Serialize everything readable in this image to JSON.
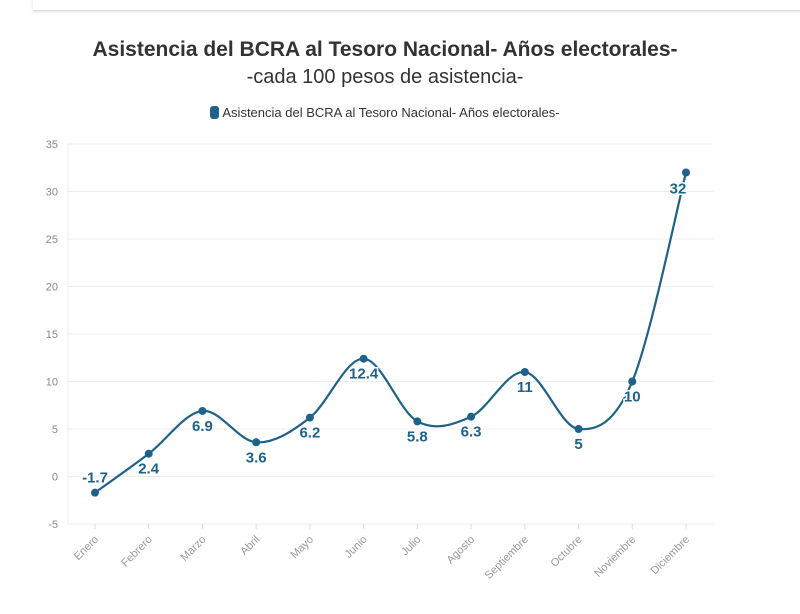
{
  "chart_data": {
    "type": "line",
    "title": "Asistencia del BCRA al Tesoro Nacional- Años electorales-",
    "subtitle": "-cada 100 pesos de asistencia-",
    "legend": [
      "Asistencia del BCRA al Tesoro Nacional- Años electorales-"
    ],
    "legend_position": "top-center",
    "categories": [
      "Enero",
      "Febrero",
      "Marzo",
      "Abril",
      "Mayo",
      "Junio",
      "Julio",
      "Agosto",
      "Septiembre",
      "Octubre",
      "Noviembre",
      "Diciembre"
    ],
    "series": [
      {
        "name": "Asistencia del BCRA al Tesoro Nacional- Años electorales-",
        "values": [
          -1.7,
          2.4,
          6.9,
          3.6,
          6.2,
          12.4,
          5.8,
          6.3,
          11,
          5,
          10,
          32
        ],
        "labels": [
          "-1.7",
          "2.4",
          "6.9",
          "3.6",
          "6.2",
          "12.4",
          "5.8",
          "6.3",
          "11",
          "5",
          "10",
          "32"
        ]
      }
    ],
    "yticks": [
      -5,
      0,
      5,
      10,
      15,
      20,
      25,
      30,
      35
    ],
    "ylim": [
      -5,
      35
    ],
    "grid": true,
    "color": "#1f6289"
  }
}
